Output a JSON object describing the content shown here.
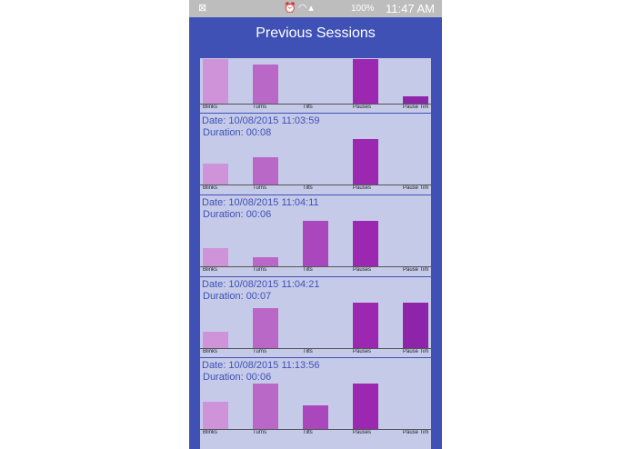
{
  "status_bar": {
    "battery": "100%",
    "time": "11:47 AM"
  },
  "title": "Previous Sessions",
  "colors": {
    "header": "#3f51b5",
    "list_background": "#c5cae9",
    "Blinks": "#ce93d8",
    "Turns": "#ba68c8",
    "Tilts": "#ab47bc",
    "Pauses": "#9c27b0",
    "Pause Time": "#8e24aa"
  },
  "chart_data": [
    {
      "type": "bar",
      "categories": [
        "Blinks",
        "Turns",
        "Tilts",
        "Pauses",
        "Pause Time"
      ],
      "tick_labels": [
        "Blinks",
        "Turns",
        "Tilts",
        "Pauses",
        "Pause Tim"
      ],
      "values": [
        0.98,
        0.86,
        0,
        0.98,
        0.15
      ],
      "date": "",
      "duration": ""
    },
    {
      "type": "bar",
      "categories": [
        "Blinks",
        "Turns",
        "Tilts",
        "Pauses",
        "Pause Time"
      ],
      "tick_labels": [
        "Blinks",
        "Turns",
        "Tilts",
        "Pauses",
        "Pause Tim"
      ],
      "values": [
        0.45,
        0.6,
        0,
        1.0,
        0
      ],
      "date": "Date: 10/08/2015 11:03:59",
      "duration": "Duration: 00:08"
    },
    {
      "type": "bar",
      "categories": [
        "Blinks",
        "Turns",
        "Tilts",
        "Pauses",
        "Pause Time"
      ],
      "tick_labels": [
        "Blinks",
        "Turns",
        "Tilts",
        "Pauses",
        "Pause Tim"
      ],
      "values": [
        0.4,
        0.2,
        1.0,
        1.0,
        0
      ],
      "date": "Date: 10/08/2015 11:04:11",
      "duration": "Duration: 00:06"
    },
    {
      "type": "bar",
      "categories": [
        "Blinks",
        "Turns",
        "Tilts",
        "Pauses",
        "Pause Time"
      ],
      "tick_labels": [
        "Blinks",
        "Turns",
        "Tilts",
        "Pauses",
        "Pause Tim"
      ],
      "values": [
        0.36,
        0.87,
        0,
        1.0,
        1.0
      ],
      "date": "Date: 10/08/2015 11:04:21",
      "duration": "Duration: 00:07"
    },
    {
      "type": "bar",
      "categories": [
        "Blinks",
        "Turns",
        "Tilts",
        "Pauses",
        "Pause Time"
      ],
      "tick_labels": [
        "Blinks",
        "Turns",
        "Tilts",
        "Pauses",
        "Pause Tim"
      ],
      "values": [
        0.6,
        1.0,
        0.51,
        1.0,
        0
      ],
      "date": "Date: 10/08/2015 11:13:56",
      "duration": "Duration: 00:06"
    }
  ]
}
